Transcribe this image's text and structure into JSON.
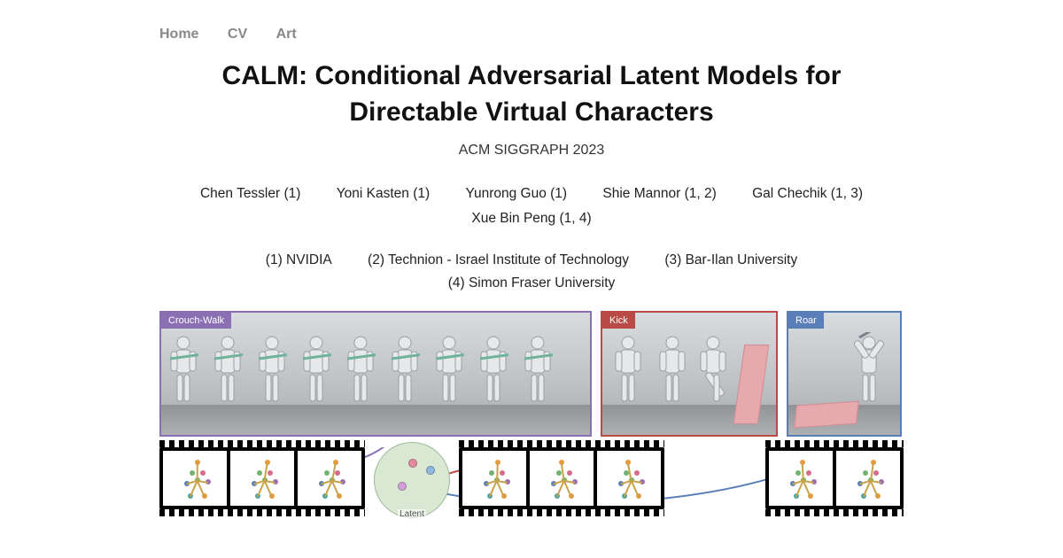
{
  "nav": {
    "home": "Home",
    "cv": "CV",
    "art": "Art"
  },
  "title": "CALM: Conditional Adversarial Latent Models for Directable Virtual Characters",
  "venue": "ACM SIGGRAPH 2023",
  "authors": [
    "Chen Tessler (1)",
    "Yoni Kasten (1)",
    "Yunrong Guo (1)",
    "Shie Mannor (1, 2)",
    "Gal Chechik (1, 3)",
    "Xue Bin Peng (1, 4)"
  ],
  "affiliations": [
    "(1) NVIDIA",
    "(2) Technion - Israel Institute of Technology",
    "(3) Bar-Ilan University",
    "(4) Simon Fraser University"
  ],
  "panels": {
    "crouch": {
      "label": "Crouch-Walk",
      "border": "#8a6fb3"
    },
    "kick": {
      "label": "Kick",
      "border": "#b94a45"
    },
    "roar": {
      "label": "Roar",
      "border": "#5a7fb8"
    }
  },
  "latent": {
    "label": "Latent",
    "bg": "#d8e8d2",
    "points": [
      {
        "color": "#e48aa0",
        "x": 38,
        "y": 18
      },
      {
        "color": "#8fb7e0",
        "x": 58,
        "y": 26
      },
      {
        "color": "#cfa0d8",
        "x": 26,
        "y": 44
      }
    ]
  },
  "skeleton_palette": {
    "joints": [
      "#e79a3c",
      "#6fb36f",
      "#d66b8a",
      "#5a7fb8",
      "#9a6fb3",
      "#4aa3a3"
    ],
    "bones": "#c9a24a"
  },
  "arrow_colors": {
    "crouch": "#8a6fb3",
    "kick": "#b94a45",
    "roar": "#5a7fb8"
  }
}
